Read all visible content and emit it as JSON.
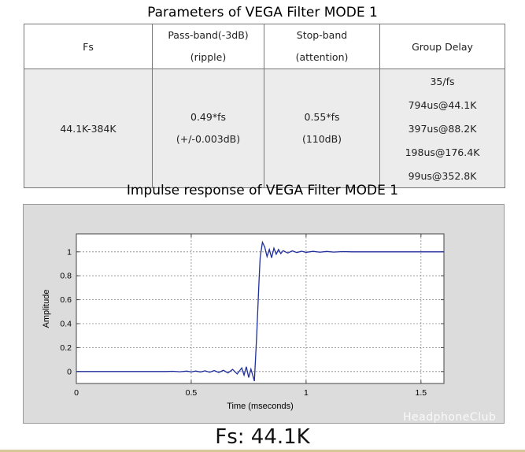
{
  "table": {
    "title": "Parameters of VEGA Filter MODE 1",
    "headers": {
      "fs": "Fs",
      "passband_l1": "Pass-band(-3dB)",
      "passband_l2": "(ripple)",
      "stopband_l1": "Stop-band",
      "stopband_l2": "(attention)",
      "group_delay": "Group Delay"
    },
    "row": {
      "fs": "44.1K-384K",
      "passband_l1": "0.49*fs",
      "passband_l2": "(+/-0.003dB)",
      "stopband_l1": "0.55*fs",
      "stopband_l2": "(110dB)",
      "group_delay": [
        "35/fs",
        "794us@44.1K",
        "397us@88.2K",
        "198us@176.4K",
        "99us@352.8K"
      ]
    }
  },
  "chart_data": {
    "type": "line",
    "title": "Impulse response of VEGA Filter MODE 1",
    "xlabel": "Time (mseconds)",
    "ylabel": "Amplitude",
    "xlim": [
      0,
      1.6
    ],
    "ylim": [
      -0.1,
      1.15
    ],
    "xticks": [
      0,
      0.5,
      1,
      1.5
    ],
    "xtick_labels": [
      "0",
      "0.5",
      "1",
      "1.5"
    ],
    "yticks": [
      0,
      0.2,
      0.4,
      0.6,
      0.8,
      1
    ],
    "ytick_labels": [
      "0",
      "0.2",
      "0.4",
      "0.6",
      "0.8",
      "1"
    ],
    "grid": true,
    "line_color": "#1f2f9c",
    "series": [
      {
        "x": [
          0,
          0.39,
          0.42,
          0.45,
          0.48,
          0.5,
          0.52,
          0.54,
          0.56,
          0.58,
          0.6,
          0.62,
          0.64,
          0.66,
          0.68,
          0.7,
          0.72,
          0.73,
          0.74,
          0.75,
          0.76,
          0.775,
          0.785,
          0.795,
          0.8,
          0.81,
          0.82,
          0.83,
          0.84,
          0.85,
          0.86,
          0.87,
          0.88,
          0.89,
          0.9,
          0.92,
          0.94,
          0.96,
          0.98,
          1.0,
          1.03,
          1.06,
          1.09,
          1.12,
          1.16,
          1.2,
          1.6
        ],
        "y": [
          0,
          0,
          0.002,
          -0.002,
          0.003,
          -0.003,
          0.004,
          -0.004,
          0.006,
          -0.006,
          0.008,
          -0.008,
          0.01,
          -0.012,
          0.018,
          -0.02,
          0.03,
          -0.03,
          0.04,
          -0.05,
          0.02,
          -0.08,
          0.3,
          0.75,
          0.95,
          1.08,
          1.04,
          0.96,
          1.02,
          0.95,
          1.03,
          0.98,
          1.02,
          0.985,
          1.01,
          0.99,
          1.008,
          0.994,
          1.005,
          0.996,
          1.004,
          0.997,
          1.003,
          0.998,
          1.002,
          1.0,
          1.0
        ]
      }
    ]
  },
  "footer": "Fs: 44.1K",
  "watermark": "HeadphoneClub"
}
